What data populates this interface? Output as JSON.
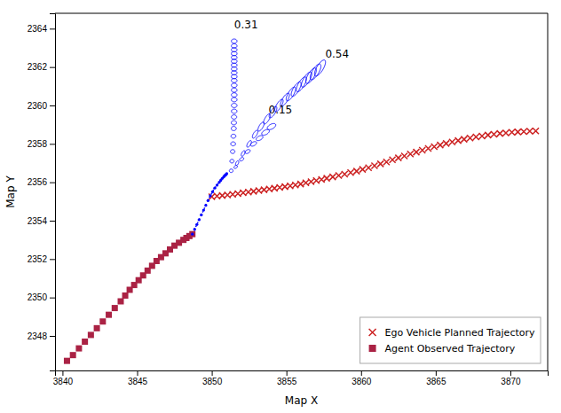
{
  "chart_data": {
    "type": "scatter",
    "xlabel": "Map X",
    "ylabel": "Map Y",
    "xlim": [
      3839.5,
      3872.5
    ],
    "ylim": [
      2346.2,
      2364.8
    ],
    "xticks": [
      3840,
      3845,
      3850,
      3855,
      3860,
      3865,
      3870
    ],
    "yticks": [
      2348,
      2350,
      2352,
      2354,
      2356,
      2358,
      2360,
      2362,
      2364
    ],
    "grid": false,
    "legend": "lower right",
    "series": [
      {
        "name": "Ego Vehicle Planned Trajectory",
        "type": "scatter",
        "marker": "x",
        "color": "#CC2222",
        "x": [
          3850.0,
          3850.35,
          3850.7,
          3851.05,
          3851.4,
          3851.75,
          3852.1,
          3852.45,
          3852.8,
          3853.15,
          3853.5,
          3853.85,
          3854.2,
          3854.55,
          3854.9,
          3855.25,
          3855.6,
          3855.95,
          3856.3,
          3856.65,
          3857.0,
          3857.35,
          3857.7,
          3858.1,
          3858.5,
          3858.9,
          3859.3,
          3859.7,
          3860.1,
          3860.5,
          3860.9,
          3861.3,
          3861.7,
          3862.1,
          3862.5,
          3862.9,
          3863.3,
          3863.7,
          3864.1,
          3864.5,
          3864.9,
          3865.3,
          3865.7,
          3866.1,
          3866.5,
          3866.9,
          3867.3,
          3867.7,
          3868.1,
          3868.5,
          3868.9,
          3869.3,
          3869.7,
          3870.1,
          3870.5,
          3870.9,
          3871.3,
          3871.7
        ],
        "values": [
          2355.25,
          2355.28,
          2355.31,
          2355.34,
          2355.37,
          2355.41,
          2355.45,
          2355.49,
          2355.53,
          2355.57,
          2355.61,
          2355.65,
          2355.69,
          2355.73,
          2355.77,
          2355.81,
          2355.86,
          2355.91,
          2355.97,
          2356.03,
          2356.09,
          2356.15,
          2356.21,
          2356.28,
          2356.35,
          2356.42,
          2356.5,
          2356.58,
          2356.67,
          2356.76,
          2356.86,
          2356.96,
          2357.06,
          2357.17,
          2357.27,
          2357.37,
          2357.47,
          2357.57,
          2357.67,
          2357.76,
          2357.85,
          2357.94,
          2358.02,
          2358.1,
          2358.17,
          2358.24,
          2358.3,
          2358.36,
          2358.41,
          2358.46,
          2358.5,
          2358.54,
          2358.57,
          2358.6,
          2358.62,
          2358.64,
          2358.66,
          2358.67
        ]
      },
      {
        "name": "Agent Observed Trajectory",
        "type": "scatter",
        "marker": "square",
        "color": "#AA2244",
        "x": [
          3840.3,
          3840.7,
          3841.1,
          3841.5,
          3841.9,
          3842.3,
          3842.7,
          3843.1,
          3843.5,
          3843.9,
          3844.2,
          3844.5,
          3844.8,
          3845.1,
          3845.4,
          3845.7,
          3846.0,
          3846.3,
          3846.6,
          3846.9,
          3847.2,
          3847.5,
          3847.8,
          3848.1,
          3848.3,
          3848.5,
          3848.7
        ],
        "values": [
          2346.7,
          2347.0,
          2347.35,
          2347.7,
          2348.05,
          2348.4,
          2348.75,
          2349.1,
          2349.45,
          2349.8,
          2350.1,
          2350.4,
          2350.65,
          2350.9,
          2351.15,
          2351.4,
          2351.65,
          2351.9,
          2352.1,
          2352.3,
          2352.5,
          2352.7,
          2352.85,
          2353.0,
          2353.1,
          2353.2,
          2353.3
        ]
      },
      {
        "type": "line",
        "line_style": "dotted",
        "marker": "dot",
        "color": "#0000FF",
        "x": [
          3848.7,
          3848.85,
          3849.0,
          3849.15,
          3849.3,
          3849.45,
          3849.6,
          3849.75,
          3849.9,
          3850.05,
          3850.2,
          3850.35,
          3850.5,
          3850.6,
          3850.7,
          3850.8,
          3850.85,
          3850.9,
          3850.95,
          3851.0
        ],
        "values": [
          2353.3,
          2353.55,
          2353.8,
          2354.05,
          2354.3,
          2354.55,
          2354.8,
          2355.05,
          2355.3,
          2355.5,
          2355.7,
          2355.85,
          2356.0,
          2356.1,
          2356.2,
          2356.28,
          2356.33,
          2356.37,
          2356.4,
          2356.45
        ]
      },
      {
        "type": "ellipse",
        "color": "#0000FF",
        "x": [
          3851.3,
          3851.35,
          3851.4,
          3851.43,
          3851.45,
          3851.47,
          3851.48,
          3851.49,
          3851.5,
          3851.5,
          3851.5,
          3851.5,
          3851.5,
          3851.5,
          3851.5,
          3851.5,
          3851.5,
          3851.5,
          3851.5,
          3851.5,
          3851.5,
          3851.5,
          3851.5,
          3851.5,
          3851.5
        ],
        "values": [
          2356.6,
          2357.1,
          2357.6,
          2358.0,
          2358.4,
          2358.8,
          2359.1,
          2359.4,
          2359.7,
          2360.0,
          2360.3,
          2360.55,
          2360.8,
          2361.05,
          2361.3,
          2361.5,
          2361.7,
          2361.9,
          2362.1,
          2362.3,
          2362.5,
          2362.7,
          2362.9,
          2363.1,
          2363.35
        ],
        "widths": [
          0.25,
          0.28,
          0.3,
          0.32,
          0.33,
          0.34,
          0.35,
          0.36,
          0.37,
          0.38,
          0.38,
          0.38,
          0.38,
          0.38,
          0.38,
          0.38,
          0.38,
          0.38,
          0.38,
          0.38,
          0.38,
          0.38,
          0.38,
          0.38,
          0.38
        ],
        "heights": [
          0.18,
          0.19,
          0.2,
          0.21,
          0.21,
          0.22,
          0.22,
          0.22,
          0.22,
          0.22,
          0.22,
          0.22,
          0.22,
          0.22,
          0.22,
          0.22,
          0.22,
          0.22,
          0.22,
          0.22,
          0.22,
          0.22,
          0.22,
          0.22,
          0.22
        ],
        "angles": [
          0,
          0,
          0,
          0,
          0,
          0,
          0,
          0,
          0,
          0,
          0,
          0,
          0,
          0,
          0,
          0,
          0,
          0,
          0,
          0,
          0,
          0,
          0,
          0,
          0
        ]
      },
      {
        "type": "ellipse",
        "color": "#0000FF",
        "x": [
          3851.7,
          3852.1,
          3852.5,
          3852.9,
          3853.3,
          3853.7,
          3854.1,
          3854.5,
          3854.9,
          3855.3,
          3855.65,
          3856.0,
          3856.35,
          3856.65,
          3856.95,
          3857.25
        ],
        "values": [
          2357.0,
          2357.5,
          2358.0,
          2358.5,
          2358.9,
          2359.3,
          2359.65,
          2360.0,
          2360.3,
          2360.6,
          2360.85,
          2361.1,
          2361.35,
          2361.55,
          2361.75,
          2361.95
        ],
        "widths": [
          0.28,
          0.35,
          0.42,
          0.5,
          0.58,
          0.66,
          0.73,
          0.8,
          0.85,
          0.9,
          0.93,
          0.96,
          0.98,
          1.0,
          1.02,
          1.04
        ],
        "heights": [
          0.16,
          0.18,
          0.2,
          0.22,
          0.24,
          0.26,
          0.28,
          0.3,
          0.32,
          0.34,
          0.36,
          0.37,
          0.38,
          0.39,
          0.4,
          0.4
        ],
        "angles": [
          50,
          50,
          50,
          50,
          50,
          50,
          50,
          50,
          50,
          50,
          50,
          50,
          50,
          50,
          50,
          50
        ]
      },
      {
        "type": "ellipse",
        "color": "#0000FF",
        "x": [
          3851.6,
          3852.0,
          3852.4,
          3852.8,
          3853.2,
          3853.6,
          3854.0
        ],
        "values": [
          2356.8,
          2357.2,
          2357.6,
          2358.0,
          2358.3,
          2358.6,
          2358.9
        ],
        "widths": [
          0.25,
          0.3,
          0.36,
          0.42,
          0.48,
          0.54,
          0.6
        ],
        "heights": [
          0.14,
          0.16,
          0.18,
          0.2,
          0.22,
          0.24,
          0.26
        ],
        "angles": [
          20,
          20,
          20,
          20,
          20,
          20,
          20
        ]
      }
    ],
    "annotations": [
      {
        "text": "0.31",
        "x": 3851.5,
        "y": 2364.0
      },
      {
        "text": "0.54",
        "x": 3857.6,
        "y": 2362.5
      },
      {
        "text": "0.15",
        "x": 3853.8,
        "y": 2359.6
      }
    ]
  }
}
